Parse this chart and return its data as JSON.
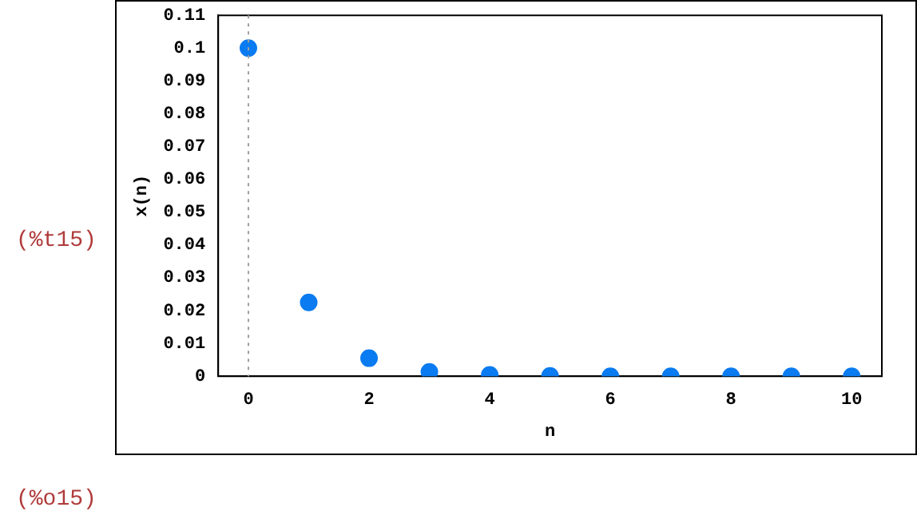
{
  "chart_data": {
    "type": "scatter",
    "xlabel": "n",
    "ylabel": "x(n)",
    "x": [
      0,
      1,
      2,
      3,
      4,
      5,
      6,
      7,
      8,
      9,
      10
    ],
    "series": [
      {
        "color": "#0a7bf0",
        "values": [
          0.1,
          0.0225,
          0.0055,
          0.0013,
          0.0004,
          0.0001,
          0,
          0,
          0,
          0,
          0
        ]
      }
    ],
    "xlim": [
      -0.5,
      10.5
    ],
    "xticks": [
      0,
      2,
      4,
      6,
      8,
      10
    ],
    "ylim": [
      0,
      0.11
    ],
    "yticks": [
      0,
      0.01,
      0.02,
      0.03,
      0.04,
      0.05,
      0.06,
      0.07,
      0.08,
      0.09,
      0.1,
      0.11
    ],
    "ref_lines": [
      {
        "axis": "x",
        "value": 0,
        "color": "#a0a0a0",
        "line_style": "dotted"
      }
    ],
    "marker": "circle",
    "grid": false,
    "legend": false,
    "annotations": [
      "(%t15)",
      "(%o15)"
    ]
  }
}
